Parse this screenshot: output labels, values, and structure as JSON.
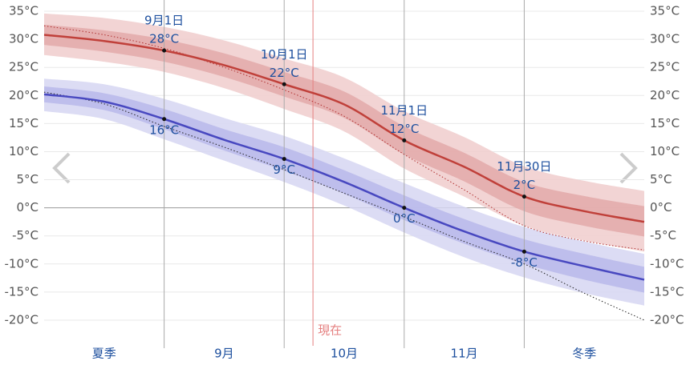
{
  "chart_data": {
    "type": "line",
    "categories": [
      null,
      null,
      "9月1日",
      null,
      "10月1日",
      null,
      "11月1日",
      null,
      "11月30日",
      null,
      null
    ],
    "season_labels": [
      "夏季",
      "9月",
      "10月",
      "11月",
      "冬季"
    ],
    "now": {
      "label": "現在",
      "x": 4.48
    },
    "ylim": [
      -23,
      37
    ],
    "yticks": [
      {
        "value": 35,
        "label": "35°C"
      },
      {
        "value": 30,
        "label": "30°C"
      },
      {
        "value": 25,
        "label": "25°C"
      },
      {
        "value": 20,
        "label": "20°C"
      },
      {
        "value": 15,
        "label": "15°C"
      },
      {
        "value": 10,
        "label": "10°C"
      },
      {
        "value": 5,
        "label": "5°C"
      },
      {
        "value": 0,
        "label": "0°C"
      },
      {
        "value": -5,
        "label": "-5°C"
      },
      {
        "value": -10,
        "label": "-10°C"
      },
      {
        "value": -15,
        "label": "-15°C"
      },
      {
        "value": -20,
        "label": "-20°C"
      }
    ],
    "grid": true,
    "bands": [
      {
        "color": "#f0cccc",
        "upper": [
          34.6,
          33.8,
          32.2,
          29.8,
          26.6,
          23.2,
          17.2,
          12.6,
          7.4,
          4.8,
          3.0
        ],
        "lower": [
          27.2,
          26.0,
          24.2,
          21.3,
          17.6,
          13.6,
          7.0,
          2.0,
          -3.2,
          -5.8,
          -7.8
        ]
      },
      {
        "color": "#e3a9a9",
        "upper": [
          32.6,
          31.6,
          30.0,
          27.5,
          24.2,
          20.7,
          14.5,
          9.8,
          4.6,
          2.1,
          0.3
        ],
        "lower": [
          29.0,
          27.8,
          26.0,
          23.3,
          19.8,
          16.0,
          9.5,
          4.7,
          -0.6,
          -3.2,
          -5.1
        ]
      },
      {
        "color": "#d6d6f2",
        "upper": [
          23.0,
          22.0,
          19.4,
          16.0,
          12.8,
          8.8,
          4.4,
          0.2,
          -3.4,
          -6.0,
          -8.2
        ],
        "lower": [
          17.2,
          15.8,
          12.2,
          8.4,
          4.6,
          0.4,
          -4.4,
          -8.8,
          -12.4,
          -15.2,
          -17.4
        ]
      },
      {
        "color": "#b8b8ea",
        "upper": [
          21.6,
          20.4,
          17.6,
          14.0,
          10.8,
          6.7,
          2.2,
          -2.0,
          -5.6,
          -8.2,
          -10.5
        ],
        "lower": [
          18.8,
          17.4,
          14.0,
          10.2,
          6.6,
          2.5,
          -2.2,
          -6.4,
          -10.0,
          -12.8,
          -15.1
        ]
      }
    ],
    "dotted": [
      {
        "color": "#b03030",
        "values": [
          32.4,
          30.8,
          28.4,
          25.0,
          21.0,
          16.3,
          9.5,
          3.2,
          -3.2,
          -5.9,
          -7.5
        ]
      },
      {
        "color": "#222222",
        "values": [
          20.6,
          18.5,
          14.5,
          10.8,
          6.8,
          2.6,
          -1.6,
          -6.0,
          -10.0,
          -15.2,
          -20.0
        ]
      }
    ],
    "series": [
      {
        "color": "#c0403a",
        "values": [
          30.8,
          29.7,
          28,
          25.4,
          22,
          18.4,
          12,
          7.3,
          2,
          -0.6,
          -2.5
        ],
        "value_labels": [
          null,
          null,
          "28°C",
          null,
          "22°C",
          null,
          "12°C",
          null,
          "2°C",
          null,
          null
        ]
      },
      {
        "color": "#4848c0",
        "values": [
          20.2,
          18.9,
          15.8,
          12.1,
          8.7,
          4.6,
          0,
          -4.2,
          -7.8,
          -10.4,
          -12.8
        ],
        "value_labels": [
          null,
          null,
          "16°C",
          null,
          "9°C",
          null,
          "0°C",
          null,
          "-8°C",
          null,
          null
        ]
      }
    ]
  }
}
